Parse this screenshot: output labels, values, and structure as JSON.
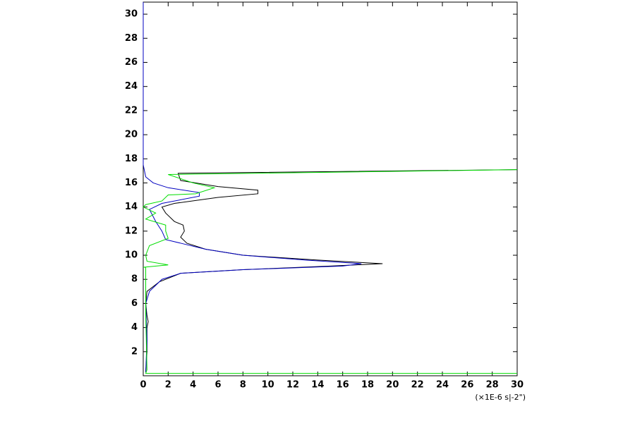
{
  "chart_data": {
    "type": "line",
    "x_unit_label": "(×1E-6 s|-2\")",
    "xlim": [
      0,
      30
    ],
    "xticks": [
      0,
      2,
      4,
      6,
      8,
      10,
      12,
      14,
      16,
      18,
      20,
      22,
      24,
      26,
      28,
      30
    ],
    "ylim": [
      0,
      31
    ],
    "yticks": [
      2,
      4,
      6,
      8,
      10,
      12,
      14,
      16,
      18,
      20,
      22,
      24,
      26,
      28,
      30
    ],
    "series": [
      {
        "color": "#000000",
        "x": [
          0.2,
          0.3,
          0.3,
          0.4,
          0.3,
          0.2,
          0.3,
          1.3,
          3,
          8,
          15,
          19.2,
          14,
          8,
          5,
          3.5,
          3,
          3.3,
          3.2,
          2.5,
          1.8,
          1.5,
          2.5,
          6,
          9.2,
          9.2,
          6,
          3,
          2.8,
          30
        ],
        "y": [
          0.3,
          2,
          4,
          4.5,
          5,
          6,
          7,
          7.8,
          8.5,
          8.8,
          9.1,
          9.3,
          9.6,
          10,
          10.5,
          11,
          11.5,
          12,
          12.5,
          12.8,
          13.5,
          14,
          14.3,
          14.8,
          15.1,
          15.4,
          15.7,
          16.2,
          16.8,
          17.1
        ]
      },
      {
        "color": "#0000c0",
        "x": [
          0.2,
          0.3,
          0.2,
          0.5,
          1.5,
          3,
          8,
          16,
          17.5,
          13,
          8,
          5,
          3,
          1.8,
          1.5,
          1,
          0.5,
          1.5,
          4.5,
          4.5,
          2,
          0.8,
          0.2,
          0,
          0,
          0
        ],
        "y": [
          0.3,
          3,
          6,
          7,
          8,
          8.5,
          8.8,
          9.1,
          9.3,
          9.6,
          10,
          10.5,
          11,
          11.3,
          12,
          12.8,
          13.8,
          14.3,
          14.9,
          15.2,
          15.6,
          16,
          16.5,
          17.5,
          28,
          31
        ]
      },
      {
        "color": "#00dd00",
        "x": [
          30,
          0.2,
          0.3,
          0.2,
          0.2,
          0,
          2,
          0.3,
          0.2,
          0.5,
          2,
          1.8,
          1.8,
          0.2,
          1,
          0,
          0.2,
          1.5,
          2,
          4.2,
          5.7,
          4,
          2,
          30
        ],
        "y": [
          0.2,
          0.2,
          0.5,
          5,
          9,
          9,
          9.2,
          9.5,
          10,
          10.8,
          11.4,
          12,
          12.5,
          13,
          13.5,
          14,
          14.2,
          14.5,
          15,
          15.1,
          15.6,
          16,
          16.7,
          17.1
        ]
      }
    ]
  }
}
